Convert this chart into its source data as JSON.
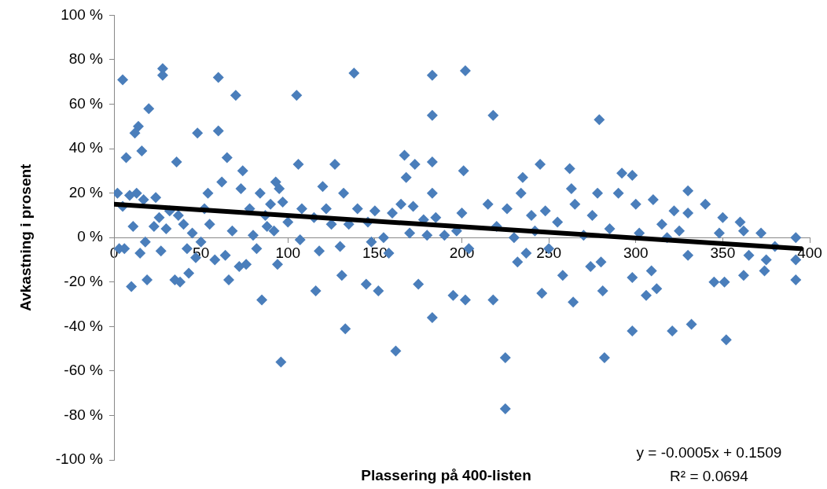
{
  "chart_data": {
    "type": "scatter",
    "xlabel": "Plassering på 400-listen",
    "ylabel": "Avkastning i prosent",
    "annotations": [
      "y = -0.0005x + 0.1509",
      "R² = 0.0694"
    ],
    "xlim": [
      0,
      400
    ],
    "xticks": [
      0,
      50,
      100,
      150,
      200,
      250,
      300,
      350,
      400
    ],
    "ylim": [
      -100,
      100
    ],
    "yticks": [
      {
        "value": -100,
        "label": "-100 %"
      },
      {
        "value": -80,
        "label": "-80 %"
      },
      {
        "value": -60,
        "label": "-60 %"
      },
      {
        "value": -40,
        "label": "-40 %"
      },
      {
        "value": -20,
        "label": "-20 %"
      },
      {
        "value": 0,
        "label": "0 %"
      },
      {
        "value": 20,
        "label": "20 %"
      },
      {
        "value": 40,
        "label": "40 %"
      },
      {
        "value": 60,
        "label": "60 %"
      },
      {
        "value": 80,
        "label": "80 %"
      },
      {
        "value": 100,
        "label": "100 %"
      }
    ],
    "grid": false,
    "legend": false,
    "series": [
      {
        "color": "#4a7ebb",
        "marker": "diamond",
        "x": [
          2,
          3,
          5,
          5,
          6,
          7,
          9,
          10,
          11,
          12,
          13,
          14,
          15,
          16,
          17,
          18,
          19,
          20,
          23,
          24,
          26,
          27,
          28,
          28,
          30,
          32,
          35,
          36,
          37,
          38,
          40,
          42,
          43,
          45,
          47,
          48,
          50,
          52,
          54,
          55,
          58,
          60,
          60,
          62,
          64,
          65,
          66,
          68,
          70,
          72,
          73,
          74,
          76,
          78,
          80,
          82,
          84,
          85,
          87,
          88,
          90,
          92,
          93,
          94,
          95,
          96,
          97,
          100,
          105,
          106,
          107,
          108,
          115,
          116,
          118,
          120,
          122,
          125,
          127,
          130,
          131,
          132,
          133,
          135,
          138,
          140,
          145,
          146,
          148,
          150,
          152,
          155,
          158,
          160,
          162,
          165,
          167,
          168,
          170,
          172,
          173,
          175,
          178,
          180,
          183,
          183,
          183,
          183,
          183,
          185,
          190,
          195,
          197,
          200,
          201,
          202,
          202,
          204,
          215,
          218,
          218,
          220,
          225,
          225,
          226,
          230,
          232,
          234,
          235,
          237,
          240,
          242,
          245,
          246,
          248,
          250,
          255,
          258,
          262,
          263,
          264,
          265,
          270,
          274,
          275,
          278,
          279,
          280,
          281,
          282,
          285,
          290,
          292,
          298,
          298,
          298,
          300,
          302,
          306,
          309,
          310,
          312,
          315,
          318,
          321,
          322,
          325,
          330,
          330,
          330,
          332,
          340,
          345,
          348,
          350,
          351,
          352,
          360,
          362,
          362,
          365,
          372,
          374,
          375,
          380,
          392,
          392,
          392
        ],
        "values": [
          20,
          -5,
          14,
          71,
          -5,
          36,
          19,
          -22,
          5,
          47,
          20,
          50,
          -7,
          39,
          17,
          -2,
          -19,
          58,
          5,
          18,
          9,
          -6,
          76,
          73,
          4,
          12,
          -19,
          34,
          10,
          -20,
          6,
          -5,
          -16,
          2,
          -9,
          47,
          -2,
          13,
          20,
          6,
          -10,
          72,
          48,
          25,
          -8,
          36,
          -19,
          3,
          64,
          -13,
          22,
          30,
          -12,
          13,
          1,
          -5,
          20,
          -28,
          10,
          5,
          15,
          3,
          25,
          -12,
          22,
          -56,
          16,
          7,
          64,
          33,
          -1,
          13,
          9,
          -24,
          -6,
          23,
          13,
          6,
          33,
          -4,
          -17,
          20,
          -41,
          6,
          74,
          13,
          -21,
          7,
          -2,
          12,
          -24,
          0,
          -7,
          11,
          -51,
          15,
          37,
          27,
          2,
          14,
          33,
          -21,
          8,
          1,
          73,
          55,
          34,
          20,
          -36,
          9,
          1,
          -26,
          3,
          11,
          30,
          75,
          -28,
          -5,
          15,
          55,
          -28,
          5,
          -54,
          -77,
          13,
          0,
          -11,
          20,
          27,
          -7,
          10,
          3,
          33,
          -25,
          12,
          -5,
          7,
          -17,
          31,
          22,
          -29,
          15,
          1,
          -13,
          10,
          20,
          53,
          -11,
          -24,
          -54,
          4,
          20,
          29,
          28,
          -18,
          -42,
          15,
          2,
          -26,
          -15,
          17,
          -23,
          6,
          0,
          -42,
          12,
          3,
          21,
          11,
          -8,
          -39,
          15,
          -20,
          2,
          9,
          -20,
          -46,
          7,
          -17,
          3,
          -8,
          2,
          -15,
          -10,
          -4,
          0,
          -19,
          -10
        ]
      },
      {
        "type": "line",
        "color": "#000000",
        "marker": "none",
        "x": [
          0,
          395
        ],
        "values": [
          15,
          -5
        ]
      }
    ]
  }
}
